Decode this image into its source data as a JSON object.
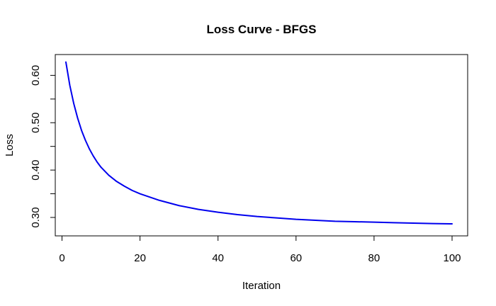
{
  "chart_data": {
    "type": "line",
    "title": "Loss Curve - BFGS",
    "xlabel": "Iteration",
    "ylabel": "Loss",
    "xlim": [
      1,
      100
    ],
    "ylim": [
      0.2865,
      0.6275
    ],
    "x_ticks": [
      0,
      20,
      40,
      60,
      80,
      100
    ],
    "x_tick_labels": [
      "0",
      "20",
      "40",
      "60",
      "80",
      "100"
    ],
    "y_ticks": [
      0.3,
      0.35,
      0.4,
      0.45,
      0.5,
      0.55,
      0.6
    ],
    "y_tick_labels": [
      "0.30",
      "",
      "0.40",
      "",
      "0.50",
      "",
      "0.60"
    ],
    "grid": false,
    "series": [
      {
        "color": "#0000ee",
        "x": [
          1,
          2,
          3,
          4,
          5,
          6,
          7,
          8,
          9,
          10,
          12,
          14,
          16,
          18,
          20,
          25,
          30,
          35,
          40,
          45,
          50,
          55,
          60,
          65,
          70,
          75,
          80,
          85,
          90,
          95,
          100
        ],
        "y": [
          0.628,
          0.579,
          0.541,
          0.51,
          0.484,
          0.463,
          0.445,
          0.43,
          0.417,
          0.406,
          0.389,
          0.376,
          0.366,
          0.357,
          0.35,
          0.336,
          0.325,
          0.317,
          0.311,
          0.306,
          0.302,
          0.299,
          0.296,
          0.294,
          0.292,
          0.291,
          0.29,
          0.289,
          0.288,
          0.287,
          0.2865
        ]
      }
    ]
  }
}
